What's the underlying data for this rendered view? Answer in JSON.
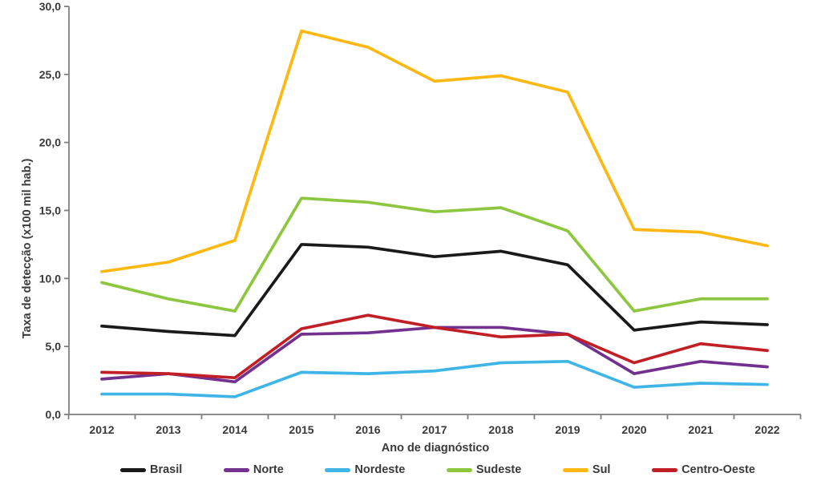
{
  "chart_data": {
    "type": "line",
    "title": "",
    "xlabel": "Ano de diagnóstico",
    "ylabel": "Taxa de detecção (x100 mil hab.)",
    "categories": [
      "2012",
      "2013",
      "2014",
      "2015",
      "2016",
      "2017",
      "2018",
      "2019",
      "2020",
      "2021",
      "2022"
    ],
    "ylim": [
      0,
      30
    ],
    "ytick_step": 5,
    "ytick_labels": [
      "0,0",
      "5,0",
      "10,0",
      "15,0",
      "20,0",
      "25,0",
      "30,0"
    ],
    "decimal_separator": "comma",
    "grid": false,
    "legend_position": "bottom",
    "axis_color": "#7f7f7f",
    "text_color": "#3a3a3a",
    "series": [
      {
        "name": "Brasil",
        "color": "#1a1a1a",
        "values": [
          6.5,
          6.1,
          5.8,
          12.5,
          12.3,
          11.6,
          12.0,
          11.0,
          6.2,
          6.8,
          6.6
        ]
      },
      {
        "name": "Norte",
        "color": "#72308f",
        "values": [
          2.6,
          3.0,
          2.4,
          5.9,
          6.0,
          6.4,
          6.4,
          5.9,
          3.0,
          3.9,
          3.5
        ]
      },
      {
        "name": "Nordeste",
        "color": "#3eb5e6",
        "values": [
          1.5,
          1.5,
          1.3,
          3.1,
          3.0,
          3.2,
          3.8,
          3.9,
          2.0,
          2.3,
          2.2
        ]
      },
      {
        "name": "Sudeste",
        "color": "#8dc63f",
        "values": [
          9.7,
          8.5,
          7.6,
          15.9,
          15.6,
          14.9,
          15.2,
          13.5,
          7.6,
          8.5,
          8.5
        ]
      },
      {
        "name": "Sul",
        "color": "#fdb813",
        "values": [
          10.5,
          11.2,
          12.8,
          28.2,
          27.0,
          24.5,
          24.9,
          23.7,
          13.6,
          13.4,
          12.4
        ]
      },
      {
        "name": "Centro-Oeste",
        "color": "#c01f25",
        "values": [
          3.1,
          3.0,
          2.7,
          6.3,
          7.3,
          6.4,
          5.7,
          5.9,
          3.8,
          5.2,
          4.7
        ]
      }
    ]
  }
}
